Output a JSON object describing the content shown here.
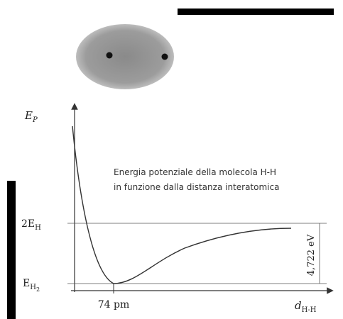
{
  "diagram": {
    "y_axis_label": {
      "main": "E",
      "sub": "P"
    },
    "caption": [
      "Energia potenziale della molecola H-H",
      "in funzione dalla distanza interatomica"
    ],
    "level_high": {
      "main": "2E",
      "sub": "H"
    },
    "level_low": {
      "main": "E",
      "sub": "H",
      "subsub": "2"
    },
    "x_mark": "74 pm",
    "energy_gap": "4,722 eV",
    "x_axis_label": {
      "main": "d",
      "sub": "H-H"
    }
  }
}
